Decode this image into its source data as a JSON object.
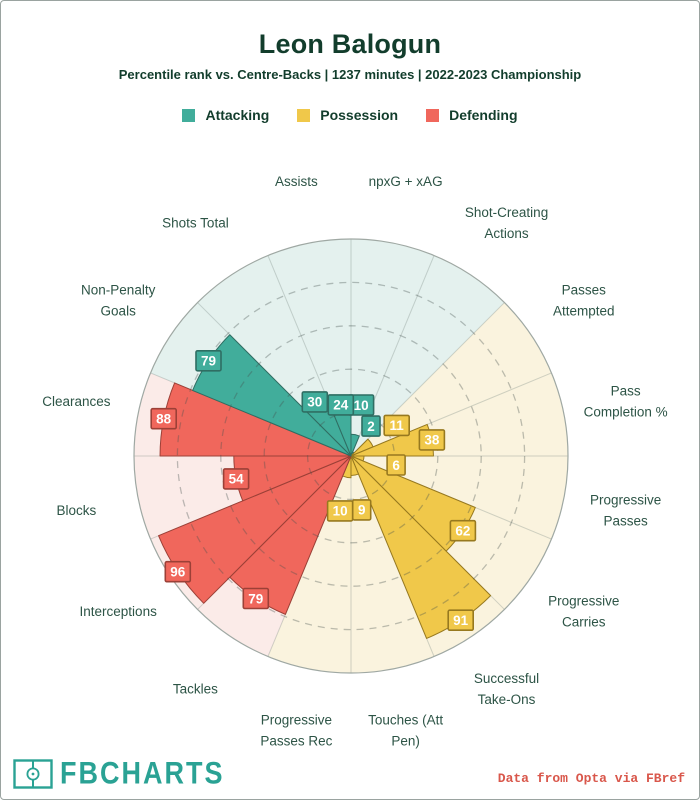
{
  "header": {
    "title": "Leon Balogun",
    "subtitle": "Percentile rank vs. Centre-Backs | 1237 minutes | 2022-2023 Championship"
  },
  "footer": {
    "brand": "FBCHARTS",
    "brand_icon": "football-pitch-icon",
    "brand_color": "#2aa294",
    "credit": "Data from Opta via FBref",
    "credit_color": "#d9574b"
  },
  "chart_data": {
    "type": "bar",
    "subtype": "polar-pizza-percentile",
    "title": "Leon Balogun",
    "max": 100,
    "rings": [
      20,
      40,
      60,
      80,
      100
    ],
    "grid": "dashed-circles",
    "groups": [
      {
        "name": "Attacking",
        "color": "#41ad9b",
        "bg": "#e4f1ee",
        "edge": "#2f6e63"
      },
      {
        "name": "Possession",
        "color": "#f0c84a",
        "bg": "#faf3de",
        "edge": "#97791f"
      },
      {
        "name": "Defending",
        "color": "#f0675c",
        "bg": "#fbebe8",
        "edge": "#9c4037"
      }
    ],
    "slices": [
      {
        "label": "npxG + xAG",
        "lines": [
          "npxG + xAG"
        ],
        "value": 10,
        "group": "Attacking"
      },
      {
        "label": "Shot-Creating Actions",
        "lines": [
          "Shot-Creating",
          "Actions"
        ],
        "value": 2,
        "group": "Attacking"
      },
      {
        "label": "Passes Attempted",
        "lines": [
          "Passes",
          "Attempted"
        ],
        "value": 11,
        "group": "Possession"
      },
      {
        "label": "Pass Completion %",
        "lines": [
          "Pass",
          "Completion %"
        ],
        "value": 38,
        "group": "Possession"
      },
      {
        "label": "Progressive Passes",
        "lines": [
          "Progressive",
          "Passes"
        ],
        "value": 6,
        "group": "Possession"
      },
      {
        "label": "Progressive Carries",
        "lines": [
          "Progressive",
          "Carries"
        ],
        "value": 62,
        "group": "Possession"
      },
      {
        "label": "Successful Take-Ons",
        "lines": [
          "Successful",
          "Take-Ons"
        ],
        "value": 91,
        "group": "Possession"
      },
      {
        "label": "Touches (Att Pen)",
        "lines": [
          "Touches (Att",
          "Pen)"
        ],
        "value": 9,
        "group": "Possession"
      },
      {
        "label": "Progressive Passes Rec",
        "lines": [
          "Progressive",
          "Passes Rec"
        ],
        "value": 10,
        "group": "Possession"
      },
      {
        "label": "Tackles",
        "lines": [
          "Tackles"
        ],
        "value": 79,
        "group": "Defending"
      },
      {
        "label": "Interceptions",
        "lines": [
          "Interceptions"
        ],
        "value": 96,
        "group": "Defending"
      },
      {
        "label": "Blocks",
        "lines": [
          "Blocks"
        ],
        "value": 54,
        "group": "Defending"
      },
      {
        "label": "Clearances",
        "lines": [
          "Clearances"
        ],
        "value": 88,
        "group": "Defending"
      },
      {
        "label": "Non-Penalty Goals",
        "lines": [
          "Non-Penalty",
          "Goals"
        ],
        "value": 79,
        "group": "Attacking"
      },
      {
        "label": "Shots Total",
        "lines": [
          "Shots Total"
        ],
        "value": 30,
        "group": "Attacking"
      },
      {
        "label": "Assists",
        "lines": [
          "Assists"
        ],
        "value": 24,
        "group": "Attacking"
      }
    ]
  }
}
